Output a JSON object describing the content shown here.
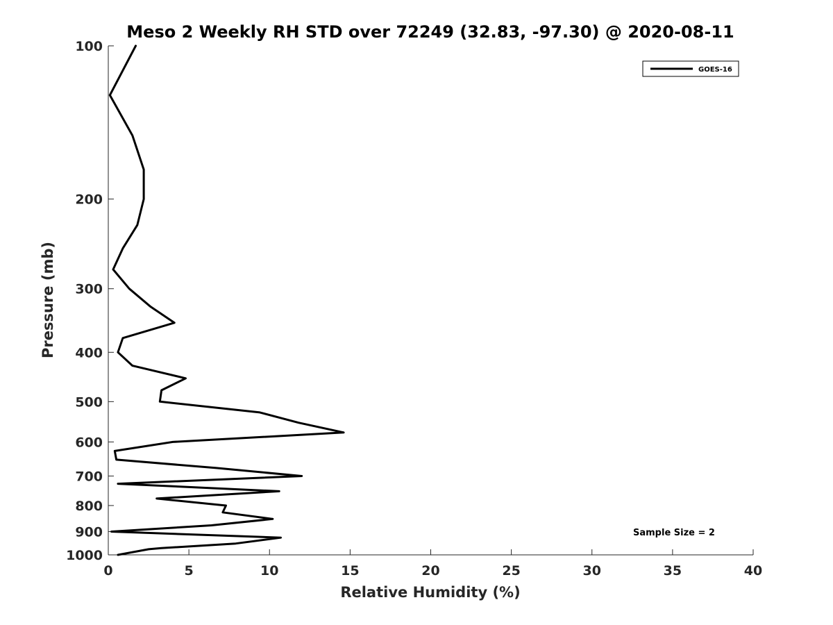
{
  "chart_data": {
    "type": "line",
    "title": "Meso 2 Weekly RH STD over 72249 (32.83, -97.30) @ 2020-08-11",
    "xlabel": "Relative Humidity (%)",
    "ylabel": "Pressure (mb)",
    "xlim": [
      0,
      40
    ],
    "ylim": [
      100,
      1000
    ],
    "y_scale": "log",
    "y_reversed": true,
    "x_ticks": [
      0,
      5,
      10,
      15,
      20,
      25,
      30,
      35,
      40
    ],
    "y_ticks": [
      100,
      200,
      300,
      400,
      500,
      600,
      700,
      800,
      900,
      1000
    ],
    "grid": false,
    "legend": "top-right",
    "annotation": "Sample Size = 2",
    "series": [
      {
        "name": "GOES-16",
        "color": "#000000",
        "points": [
          {
            "x": 1.7,
            "y": 100
          },
          {
            "x": 0.1,
            "y": 125
          },
          {
            "x": 1.5,
            "y": 150
          },
          {
            "x": 2.2,
            "y": 175
          },
          {
            "x": 2.2,
            "y": 200
          },
          {
            "x": 1.8,
            "y": 225
          },
          {
            "x": 0.9,
            "y": 250
          },
          {
            "x": 0.3,
            "y": 275
          },
          {
            "x": 1.3,
            "y": 300
          },
          {
            "x": 2.6,
            "y": 325
          },
          {
            "x": 4.1,
            "y": 350
          },
          {
            "x": 0.9,
            "y": 375
          },
          {
            "x": 0.6,
            "y": 400
          },
          {
            "x": 1.5,
            "y": 425
          },
          {
            "x": 4.8,
            "y": 450
          },
          {
            "x": 3.3,
            "y": 475
          },
          {
            "x": 3.2,
            "y": 500
          },
          {
            "x": 9.4,
            "y": 525
          },
          {
            "x": 11.8,
            "y": 550
          },
          {
            "x": 14.6,
            "y": 575
          },
          {
            "x": 4.0,
            "y": 600
          },
          {
            "x": 0.4,
            "y": 625
          },
          {
            "x": 0.5,
            "y": 650
          },
          {
            "x": 6.7,
            "y": 675
          },
          {
            "x": 12.0,
            "y": 700
          },
          {
            "x": 0.6,
            "y": 725
          },
          {
            "x": 10.6,
            "y": 750
          },
          {
            "x": 3.0,
            "y": 775
          },
          {
            "x": 7.3,
            "y": 800
          },
          {
            "x": 7.1,
            "y": 825
          },
          {
            "x": 10.2,
            "y": 850
          },
          {
            "x": 6.4,
            "y": 875
          },
          {
            "x": 0.2,
            "y": 900
          },
          {
            "x": 10.7,
            "y": 925
          },
          {
            "x": 7.9,
            "y": 950
          },
          {
            "x": 3.3,
            "y": 970
          },
          {
            "x": 2.5,
            "y": 975
          },
          {
            "x": 0.6,
            "y": 1000
          }
        ]
      }
    ]
  },
  "extra_points_note_free": true
}
